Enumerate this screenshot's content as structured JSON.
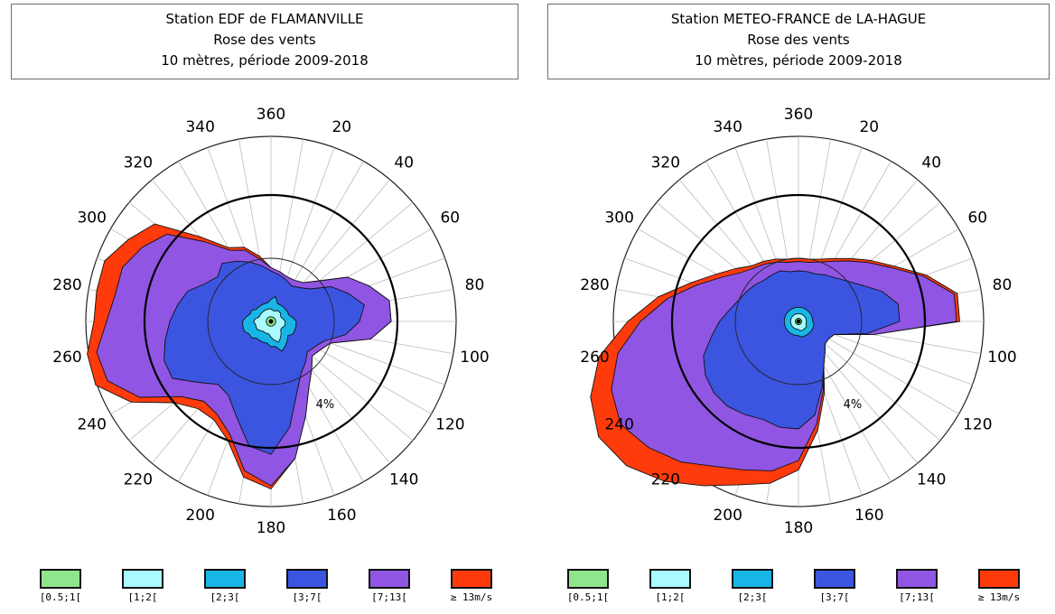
{
  "chart_data": [
    {
      "type": "polar-area",
      "title": [
        "Station EDF de FLAMANVILLE",
        "Rose des vents",
        "10 mètres, période 2009-2018"
      ],
      "direction_labels": [
        "360",
        "20",
        "40",
        "60",
        "80",
        "100",
        "120",
        "140",
        "160",
        "180",
        "200",
        "220",
        "240",
        "260",
        "280",
        "300",
        "320",
        "340"
      ],
      "ring_label": "4%",
      "directions_deg": [
        0,
        10,
        20,
        30,
        40,
        50,
        60,
        70,
        80,
        90,
        100,
        110,
        120,
        130,
        140,
        150,
        160,
        170,
        180,
        190,
        200,
        210,
        220,
        230,
        240,
        250,
        260,
        270,
        280,
        290,
        300,
        310,
        320,
        330,
        340,
        350
      ],
      "series": [
        {
          "name": "[0.5;1[",
          "values": [
            0.15,
            0.15,
            0.15,
            0.15,
            0.15,
            0.15,
            0.15,
            0.15,
            0.15,
            0.15,
            0.15,
            0.15,
            0.15,
            0.15,
            0.15,
            0.15,
            0.15,
            0.15,
            0.15,
            0.15,
            0.15,
            0.15,
            0.15,
            0.15,
            0.15,
            0.15,
            0.15,
            0.15,
            0.15,
            0.15,
            0.15,
            0.15,
            0.15,
            0.15,
            0.15,
            0.15
          ]
        },
        {
          "name": "[1;2[",
          "values": [
            0.4,
            0.35,
            0.35,
            0.4,
            0.4,
            0.4,
            0.35,
            0.35,
            0.4,
            0.45,
            0.45,
            0.45,
            0.4,
            0.4,
            0.5,
            0.6,
            0.7,
            0.6,
            0.5,
            0.4,
            0.4,
            0.4,
            0.4,
            0.45,
            0.5,
            0.5,
            0.5,
            0.55,
            0.5,
            0.4,
            0.4,
            0.4,
            0.4,
            0.4,
            0.4,
            0.4
          ]
        },
        {
          "name": "[2;3[",
          "values": [
            0.7,
            0.8,
            0.6,
            0.6,
            0.6,
            0.6,
            0.6,
            0.6,
            0.7,
            0.8,
            0.8,
            0.8,
            0.8,
            0.7,
            0.8,
            0.9,
            1.0,
            0.8,
            0.8,
            0.7,
            0.7,
            0.7,
            0.7,
            0.8,
            0.8,
            0.9,
            0.9,
            0.9,
            0.8,
            0.7,
            0.7,
            0.6,
            0.6,
            0.6,
            0.6,
            0.6
          ]
        },
        {
          "name": "[3;7[",
          "values": [
            1.6,
            1.5,
            1.4,
            1.3,
            1.4,
            1.6,
            2.2,
            2.6,
            3.0,
            2.8,
            2.4,
            1.8,
            1.6,
            1.5,
            1.7,
            1.9,
            2.4,
            3.4,
            4.2,
            4.0,
            3.2,
            2.7,
            2.6,
            3.0,
            3.6,
            3.6,
            3.4,
            3.2,
            3.0,
            2.8,
            2.4,
            2.2,
            2.4,
            2.2,
            2.0,
            1.8
          ]
        },
        {
          "name": "[7;13[",
          "values": [
            1.7,
            1.6,
            1.5,
            1.5,
            1.6,
            2.0,
            2.8,
            3.3,
            3.8,
            3.8,
            3.2,
            2.0,
            1.8,
            1.7,
            2.0,
            2.4,
            3.2,
            4.4,
            5.2,
            4.8,
            3.8,
            3.4,
            3.3,
            3.7,
            4.8,
            5.5,
            5.6,
            5.2,
            5.0,
            5.0,
            4.7,
            4.3,
            3.3,
            2.6,
            2.4,
            2.0
          ]
        },
        {
          "name": "≥ 13m/s",
          "values": [
            1.7,
            1.6,
            1.5,
            1.5,
            1.6,
            2.0,
            2.8,
            3.3,
            3.8,
            3.8,
            3.2,
            2.0,
            1.8,
            1.7,
            2.0,
            2.4,
            3.2,
            4.4,
            5.3,
            5.0,
            4.0,
            3.6,
            3.6,
            4.0,
            5.1,
            5.9,
            5.9,
            5.6,
            5.6,
            5.6,
            5.2,
            4.8,
            3.5,
            2.7,
            2.5,
            2.1
          ]
        }
      ]
    },
    {
      "type": "polar-area",
      "title": [
        "Station METEO-FRANCE de LA-HAGUE",
        "Rose des vents",
        "10 mètres, période 2009-2018"
      ],
      "direction_labels": [
        "360",
        "20",
        "40",
        "60",
        "80",
        "100",
        "120",
        "140",
        "160",
        "180",
        "200",
        "220",
        "240",
        "260",
        "280",
        "300",
        "320",
        "340"
      ],
      "ring_label": "4%",
      "directions_deg": [
        0,
        10,
        20,
        30,
        40,
        50,
        60,
        70,
        80,
        90,
        100,
        110,
        120,
        130,
        140,
        150,
        160,
        170,
        180,
        190,
        200,
        210,
        220,
        230,
        240,
        250,
        260,
        270,
        280,
        290,
        300,
        310,
        320,
        330,
        340,
        350
      ],
      "series": [
        {
          "name": "[0.5;1[",
          "values": [
            0.1,
            0.1,
            0.1,
            0.1,
            0.1,
            0.1,
            0.1,
            0.1,
            0.1,
            0.1,
            0.1,
            0.1,
            0.1,
            0.1,
            0.1,
            0.1,
            0.1,
            0.1,
            0.1,
            0.1,
            0.1,
            0.1,
            0.1,
            0.1,
            0.1,
            0.1,
            0.1,
            0.1,
            0.1,
            0.1,
            0.1,
            0.1,
            0.1,
            0.1,
            0.1,
            0.1
          ]
        },
        {
          "name": "[1;2[",
          "values": [
            0.25,
            0.25,
            0.25,
            0.25,
            0.25,
            0.25,
            0.25,
            0.25,
            0.25,
            0.25,
            0.25,
            0.25,
            0.3,
            0.3,
            0.3,
            0.3,
            0.3,
            0.3,
            0.25,
            0.25,
            0.25,
            0.25,
            0.25,
            0.25,
            0.25,
            0.25,
            0.25,
            0.25,
            0.25,
            0.25,
            0.25,
            0.25,
            0.25,
            0.25,
            0.25,
            0.25
          ]
        },
        {
          "name": "[2;3[",
          "values": [
            0.45,
            0.45,
            0.45,
            0.45,
            0.45,
            0.45,
            0.45,
            0.45,
            0.45,
            0.45,
            0.5,
            0.5,
            0.5,
            0.5,
            0.5,
            0.5,
            0.5,
            0.5,
            0.45,
            0.45,
            0.45,
            0.45,
            0.45,
            0.45,
            0.45,
            0.45,
            0.45,
            0.45,
            0.45,
            0.45,
            0.45,
            0.45,
            0.45,
            0.45,
            0.45,
            0.45
          ]
        },
        {
          "name": "[3;7[",
          "values": [
            1.6,
            1.6,
            1.6,
            1.7,
            1.8,
            2.0,
            2.3,
            2.8,
            3.2,
            3.2,
            2.2,
            1.2,
            1.1,
            1.1,
            1.3,
            1.6,
            2.2,
            3.0,
            3.4,
            3.4,
            3.3,
            3.4,
            3.5,
            3.5,
            3.4,
            3.2,
            2.8,
            2.5,
            2.2,
            2.0,
            1.9,
            1.8,
            1.7,
            1.7,
            1.7,
            1.6
          ]
        },
        {
          "name": "[7;13[",
          "values": [
            1.9,
            1.9,
            2.0,
            2.2,
            2.5,
            2.9,
            3.4,
            4.2,
            5.0,
            5.0,
            2.4,
            1.2,
            1.1,
            1.1,
            1.3,
            1.6,
            2.3,
            3.3,
            4.4,
            4.8,
            5.0,
            5.3,
            5.8,
            6.2,
            6.5,
            6.3,
            5.8,
            5.0,
            4.2,
            3.4,
            2.8,
            2.4,
            2.2,
            2.1,
            2.0,
            1.9
          ]
        },
        {
          "name": "≥ 13m/s",
          "values": [
            2.0,
            2.0,
            2.1,
            2.3,
            2.6,
            3.0,
            3.5,
            4.3,
            5.1,
            5.1,
            2.4,
            1.2,
            1.1,
            1.1,
            1.3,
            1.6,
            2.4,
            3.5,
            4.7,
            5.2,
            5.5,
            6.0,
            6.6,
            7.1,
            7.3,
            7.0,
            6.4,
            5.4,
            4.5,
            3.6,
            3.0,
            2.6,
            2.3,
            2.2,
            2.1,
            2.0
          ]
        }
      ]
    }
  ],
  "legend": {
    "colors": [
      "#8fe58c",
      "#a9fbff",
      "#18b6e6",
      "#3b55e0",
      "#9055e2",
      "#ff3b0b"
    ],
    "labels": [
      "[0.5;1[",
      "[1;2[",
      "[2;3[",
      "[3;7[",
      "[7;13[",
      "≥ 13m/s"
    ]
  }
}
